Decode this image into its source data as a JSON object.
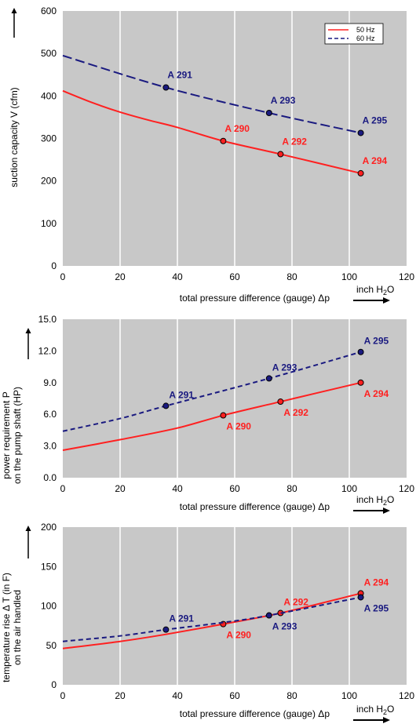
{
  "colors": {
    "red": "#ff2020",
    "navy": "#1a1a80",
    "plot_bg": "#c8c8c8",
    "grid": "#ffffff"
  },
  "chart_data": [
    {
      "type": "line",
      "ylabel": "suction capacity V (cfm)",
      "xlabel": "total pressure difference (gauge)  Δp",
      "unit_label": "inch H",
      "unit_sub": "2",
      "unit_tail": "O",
      "xlim": [
        0,
        120
      ],
      "ylim": [
        0,
        600
      ],
      "xticks": [
        "0",
        "20",
        "40",
        "60",
        "80",
        "100",
        "120"
      ],
      "yticks": [
        "0",
        "100",
        "200",
        "300",
        "400",
        "500",
        "600"
      ],
      "legend": {
        "position": "top-right",
        "entries": [
          "50 Hz",
          "60 Hz"
        ]
      },
      "series": [
        {
          "name": "50 Hz",
          "style": "solid",
          "color": "#ff2020",
          "curve_x": [
            0,
            10,
            20,
            30,
            40,
            56,
            76,
            104
          ],
          "curve_y": [
            412,
            385,
            362,
            343,
            326,
            294,
            263,
            218
          ],
          "points": [
            {
              "label": "A 290",
              "x": 56,
              "y": 294,
              "label_pos": "above"
            },
            {
              "label": "A 292",
              "x": 76,
              "y": 263,
              "label_pos": "above"
            },
            {
              "label": "A 294",
              "x": 104,
              "y": 218,
              "label_pos": "above"
            }
          ]
        },
        {
          "name": "60 Hz",
          "style": "dashed",
          "color": "#1a1a80",
          "curve_x": [
            0,
            36,
            72,
            104
          ],
          "curve_y": [
            495,
            420,
            360,
            313
          ],
          "points": [
            {
              "label": "A 291",
              "x": 36,
              "y": 420,
              "label_pos": "above"
            },
            {
              "label": "A 293",
              "x": 72,
              "y": 360,
              "label_pos": "above"
            },
            {
              "label": "A 295",
              "x": 104,
              "y": 313,
              "label_pos": "above"
            }
          ]
        }
      ]
    },
    {
      "type": "line",
      "ylabel": "power requirement P",
      "ylabel2": "on the pump shaft (HP)",
      "xlabel": "total pressure difference (gauge)  Δp",
      "unit_label": "inch H",
      "unit_sub": "2",
      "unit_tail": "O",
      "xlim": [
        0,
        120
      ],
      "ylim": [
        0,
        15
      ],
      "xticks": [
        "0",
        "20",
        "40",
        "60",
        "80",
        "100",
        "120"
      ],
      "yticks": [
        "0.0",
        "3.0",
        "6.0",
        "9.0",
        "12.0",
        "15.0"
      ],
      "series": [
        {
          "name": "",
          "style": "solid",
          "color": "#ff2020",
          "curve_x": [
            0,
            20,
            40,
            56,
            76,
            104
          ],
          "curve_y": [
            2.6,
            3.6,
            4.7,
            5.9,
            7.2,
            9.0
          ],
          "points": [
            {
              "label": "A 290",
              "x": 56,
              "y": 5.9,
              "label_pos": "below"
            },
            {
              "label": "A 292",
              "x": 76,
              "y": 7.2,
              "label_pos": "below"
            },
            {
              "label": "A 294",
              "x": 104,
              "y": 9.0,
              "label_pos": "below"
            }
          ]
        },
        {
          "name": "",
          "style": "dashed",
          "color": "#1a1a80",
          "curve_x": [
            0,
            20,
            36,
            72,
            104
          ],
          "curve_y": [
            4.4,
            5.6,
            6.8,
            9.4,
            11.9
          ],
          "points": [
            {
              "label": "A 291",
              "x": 36,
              "y": 6.8,
              "label_pos": "above"
            },
            {
              "label": "A 293",
              "x": 72,
              "y": 9.4,
              "label_pos": "above"
            },
            {
              "label": "A 295",
              "x": 104,
              "y": 11.9,
              "label_pos": "above"
            }
          ]
        }
      ]
    },
    {
      "type": "line",
      "ylabel": "temperature rise Δ T   (in F)",
      "ylabel2": "on the air handled",
      "xlabel": "total pressure difference (gauge)  Δp",
      "unit_label": "inch H",
      "unit_sub": "2",
      "unit_tail": "O",
      "xlim": [
        0,
        120
      ],
      "ylim": [
        0,
        200
      ],
      "xticks": [
        "0",
        "20",
        "40",
        "60",
        "80",
        "100",
        "120"
      ],
      "yticks": [
        "0",
        "50",
        "100",
        "150",
        "200"
      ],
      "series": [
        {
          "name": "",
          "style": "solid",
          "color": "#ff2020",
          "curve_x": [
            0,
            20,
            36,
            56,
            76,
            104
          ],
          "curve_y": [
            46,
            55,
            64,
            77,
            91,
            116
          ],
          "points": [
            {
              "label": "A 290",
              "x": 56,
              "y": 77,
              "label_pos": "below"
            },
            {
              "label": "A 292",
              "x": 76,
              "y": 91,
              "label_pos": "above"
            },
            {
              "label": "A 294",
              "x": 104,
              "y": 116,
              "label_pos": "above"
            }
          ]
        },
        {
          "name": "",
          "style": "dashed",
          "color": "#1a1a80",
          "curve_x": [
            0,
            20,
            36,
            56,
            72,
            104
          ],
          "curve_y": [
            55,
            62,
            70,
            79,
            88,
            111
          ],
          "points": [
            {
              "label": "A 291",
              "x": 36,
              "y": 70,
              "label_pos": "above"
            },
            {
              "label": "A 293",
              "x": 72,
              "y": 88,
              "label_pos": "below"
            },
            {
              "label": "A 295",
              "x": 104,
              "y": 111,
              "label_pos": "below"
            }
          ]
        }
      ]
    }
  ]
}
